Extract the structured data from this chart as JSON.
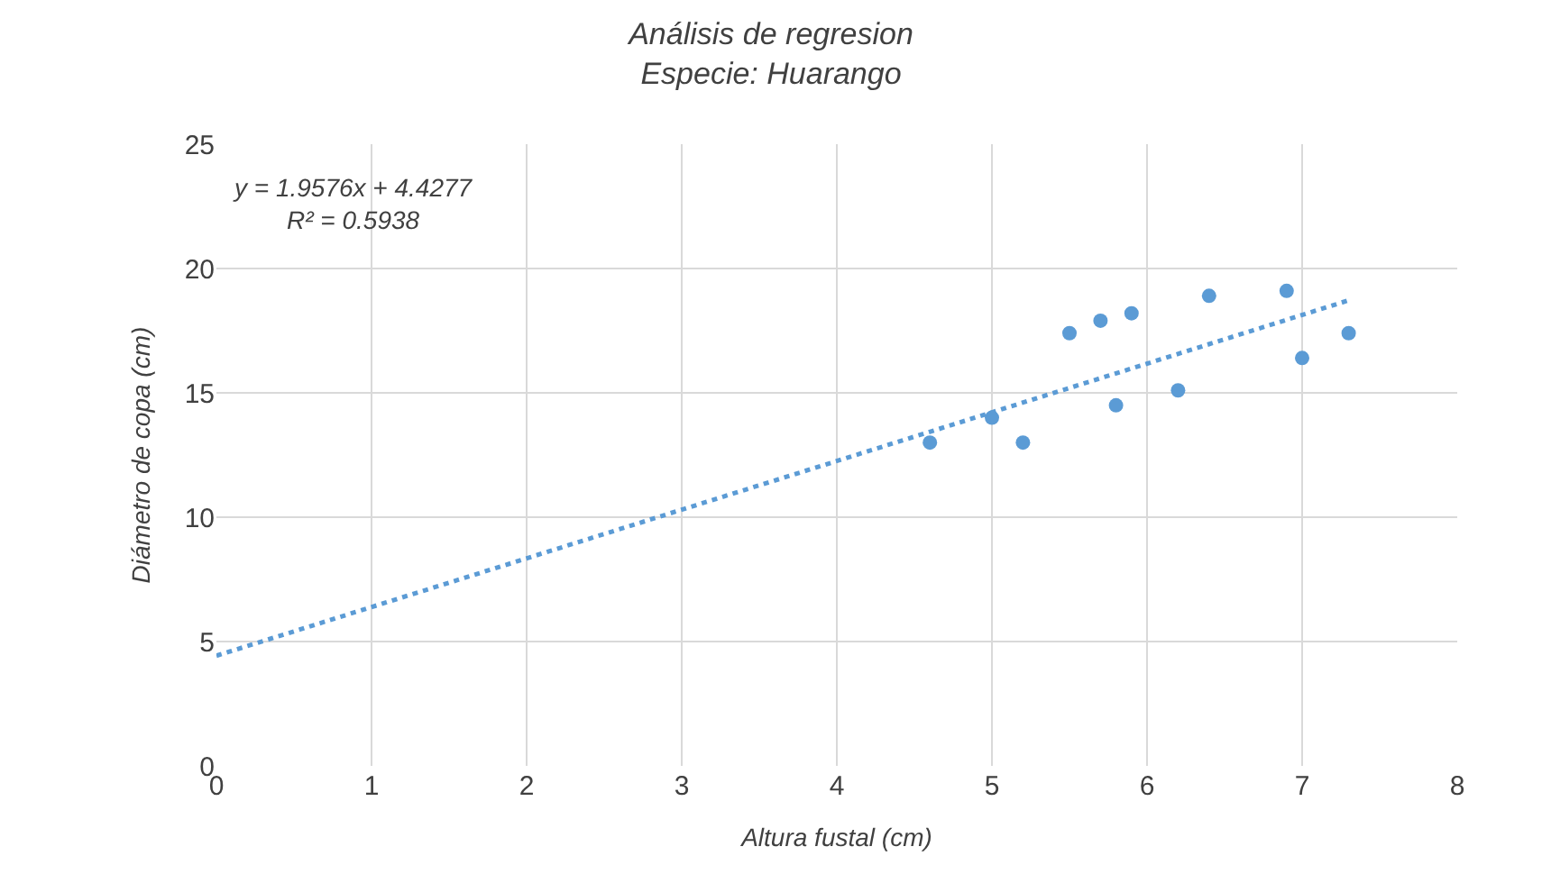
{
  "chart_data": {
    "type": "scatter",
    "title": "Análisis de regresion",
    "subtitle": "Especie: Huarango",
    "xlabel": "Altura fustal (cm)",
    "ylabel": "Diámetro de copa (cm)",
    "xlim": [
      0,
      8
    ],
    "xticks": [
      0,
      1,
      2,
      3,
      4,
      5,
      6,
      7,
      8
    ],
    "ylim": [
      0,
      25
    ],
    "yticks": [
      0,
      5,
      10,
      15,
      20,
      25
    ],
    "grid": true,
    "marker": "circle",
    "annotations": [
      "y = 1.9576x + 4.4277\nR² = 0.5938"
    ],
    "series": [
      {
        "color": "#5b9bd5",
        "x": [
          4.6,
          5.0,
          5.2,
          5.5,
          5.7,
          5.8,
          5.9,
          6.2,
          6.4,
          6.9,
          7.0,
          7.3
        ],
        "values": [
          13,
          14,
          13,
          17.4,
          17.9,
          14.5,
          18.2,
          15.1,
          18.9,
          19.1,
          16.4,
          17.4
        ]
      },
      {
        "type": "line",
        "marker": "none",
        "color": "#5b9bd5",
        "line_style": "dotted",
        "x": [
          0,
          7.3
        ],
        "values": [
          4.43,
          18.72
        ]
      }
    ]
  }
}
